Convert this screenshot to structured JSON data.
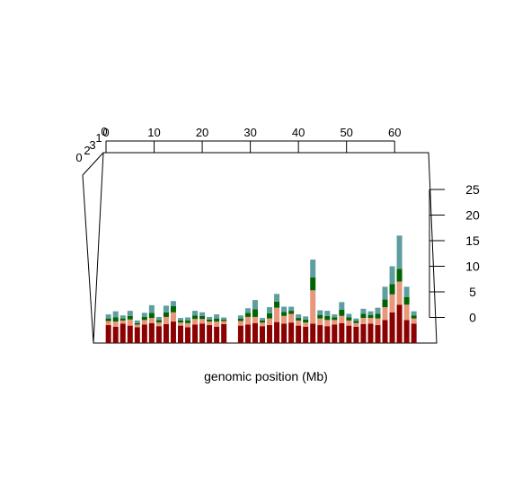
{
  "chart_data": {
    "type": "bar",
    "chart_style": "3d-stacked-bar",
    "xlabel": "genomic position (Mb)",
    "x_ticks": [
      "0",
      "10",
      "20",
      "30",
      "40",
      "50",
      "60"
    ],
    "x_range": [
      0,
      65
    ],
    "z_ticks": [
      "0",
      "5",
      "10",
      "15",
      "20",
      "25"
    ],
    "z_range": [
      -3,
      27
    ],
    "depth_ticks": [
      "0",
      "2",
      "3",
      "1",
      "0"
    ],
    "grid": false,
    "series": [
      {
        "color": "#8b0000"
      },
      {
        "color": "#e9967a"
      },
      {
        "color": "#006400"
      },
      {
        "color": "#5f9ea0"
      }
    ],
    "x": [
      0.5,
      2,
      3.5,
      5,
      6.5,
      8,
      9.5,
      11,
      12.5,
      14,
      15.5,
      17,
      18.5,
      20,
      21.5,
      23,
      24.5,
      28,
      29.5,
      31,
      32.5,
      34,
      35.5,
      37,
      38.5,
      40,
      41.5,
      43,
      44.5,
      46,
      47.5,
      49,
      50.5,
      52,
      53.5,
      55,
      56.5,
      58,
      59.5,
      61,
      62.5,
      64
    ],
    "values": [
      [
        -1.5,
        -1.8,
        -1.2,
        -1.6,
        -1.9,
        -1.4,
        -1.1,
        -1.7,
        -1.3,
        -0.8,
        -1.6,
        -1.9,
        -1.4,
        -1.2,
        -1.5,
        -1.8,
        -1.3,
        -1.6,
        -1.4,
        -1.1,
        -1.7,
        -1.5,
        -0.9,
        -1.2,
        -1.0,
        -1.6,
        -1.8,
        -1.2,
        -1.5,
        -1.7,
        -1.4,
        -1.1,
        -1.6,
        -1.8,
        -1.3,
        -1.2,
        -1.5,
        -0.5,
        1.0,
        2.5,
        -0.5,
        -1.2
      ],
      [
        0.8,
        1.0,
        0.6,
        1.2,
        0.5,
        0.9,
        1.0,
        0.7,
        1.4,
        1.8,
        0.6,
        0.8,
        1.1,
        0.9,
        0.7,
        1.0,
        0.6,
        0.9,
        1.5,
        1.2,
        0.7,
        1.3,
        2.8,
        1.5,
        1.7,
        1.0,
        0.8,
        6.5,
        1.3,
        1.2,
        0.9,
        1.4,
        1.0,
        0.7,
        1.2,
        1.1,
        1.3,
        2.5,
        3.5,
        4.5,
        3.0,
        1.0
      ],
      [
        0.5,
        0.8,
        0.4,
        0.7,
        0.3,
        0.6,
        1.0,
        0.5,
        0.9,
        1.2,
        0.4,
        0.5,
        0.7,
        0.6,
        0.4,
        0.6,
        0.3,
        0.5,
        0.8,
        1.5,
        0.4,
        1.0,
        1.2,
        0.8,
        0.6,
        0.5,
        0.6,
        2.5,
        0.7,
        0.8,
        0.5,
        1.2,
        0.6,
        0.4,
        0.8,
        0.6,
        0.9,
        1.5,
        2.0,
        2.5,
        1.5,
        0.6
      ],
      [
        0.8,
        1.2,
        0.6,
        1.0,
        0.5,
        0.8,
        1.5,
        0.6,
        1.3,
        1.0,
        0.5,
        0.6,
        0.9,
        0.7,
        0.5,
        0.8,
        0.4,
        0.6,
        0.9,
        1.8,
        0.5,
        1.2,
        1.5,
        1.0,
        0.8,
        0.7,
        0.6,
        3.5,
        0.9,
        1.0,
        0.6,
        1.5,
        0.7,
        0.5,
        1.0,
        0.7,
        1.2,
        2.5,
        3.5,
        6.5,
        2.0,
        0.8
      ]
    ]
  }
}
